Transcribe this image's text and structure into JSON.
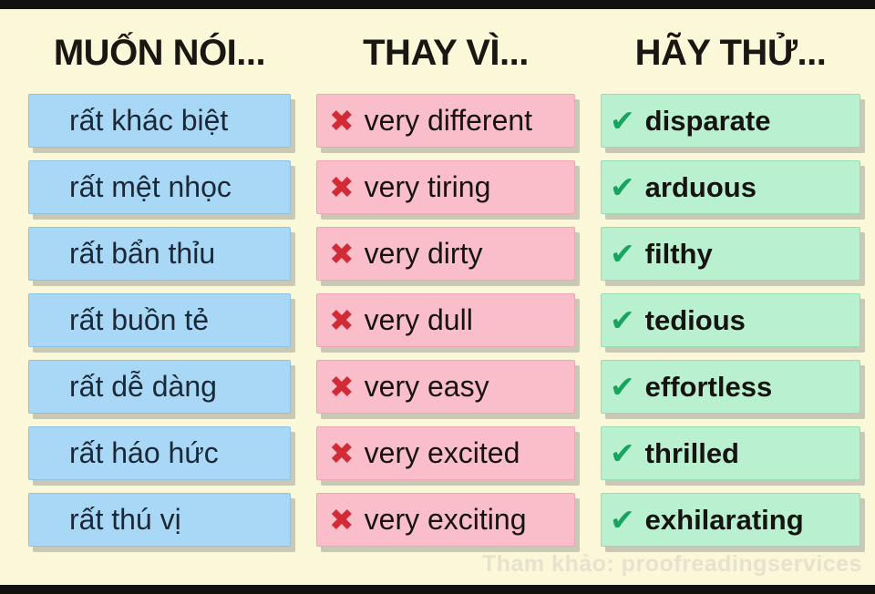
{
  "theme": {
    "page-bg": "#fbf8da",
    "bar-color": "#131110",
    "blue-box": "#a8d8f5",
    "pink-box": "#f9bec9",
    "green-box": "#b9f0cf",
    "x-color": "#d32b35",
    "check-color": "#18a35e",
    "header-text": "#1a1713",
    "vn-text": "#1b2838",
    "body-text": "#161310",
    "credit-text": "#e6e2cd",
    "shadow-color": "rgba(128,133,128,0.42)"
  },
  "icons": {
    "x_mark": "✖",
    "check_mark": "✔"
  },
  "columns": [
    {
      "header": "MUỐN NÓI..."
    },
    {
      "header": "THAY VÌ..."
    },
    {
      "header": "HÃY THỬ..."
    }
  ],
  "rows": [
    {
      "vietnamese": "rất khác biệt",
      "avoid": "very different",
      "try": "disparate"
    },
    {
      "vietnamese": "rất mệt nhọc",
      "avoid": "very tiring",
      "try": "arduous"
    },
    {
      "vietnamese": "rất bẩn thỉu",
      "avoid": "very dirty",
      "try": "filthy"
    },
    {
      "vietnamese": "rất buồn tẻ",
      "avoid": "very dull",
      "try": "tedious"
    },
    {
      "vietnamese": "rất dễ dàng",
      "avoid": "very easy",
      "try": "effortless"
    },
    {
      "vietnamese": "rất háo hức",
      "avoid": "very excited",
      "try": "thrilled"
    },
    {
      "vietnamese": "rất thú vị",
      "avoid": "very exciting",
      "try": "exhilarating"
    }
  ],
  "credit": "Tham khảo: proofreadingservices"
}
